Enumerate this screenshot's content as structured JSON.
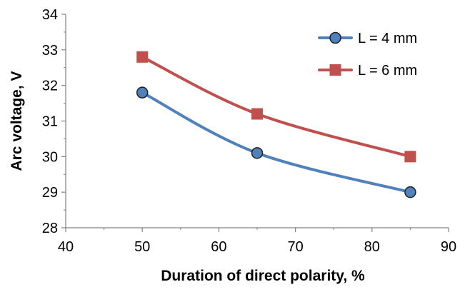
{
  "chart_data": {
    "type": "line",
    "title": "",
    "xlabel": "Duration of direct polarity, %",
    "ylabel": "Arc voltage, V",
    "xlim": [
      40,
      90
    ],
    "ylim": [
      28,
      34
    ],
    "xticks": [
      40,
      50,
      60,
      70,
      80,
      90
    ],
    "yticks": [
      28,
      29,
      30,
      31,
      32,
      33,
      34
    ],
    "x_tick_labels": [
      "40",
      "50",
      "60",
      "70",
      "80",
      "90"
    ],
    "y_tick_labels": [
      "28",
      "29",
      "30",
      "31",
      "32",
      "33",
      "34"
    ],
    "grid": false,
    "smooth": true,
    "legend_position": "top-right",
    "series": [
      {
        "name": "L = 4 mm",
        "marker": "circle",
        "line_color": "#4F81BD",
        "marker_fill": "#4F81BD",
        "marker_edge": "#1F1F1F",
        "x": [
          50,
          65,
          85
        ],
        "y": [
          31.8,
          30.1,
          29.0
        ]
      },
      {
        "name": "L = 6 mm",
        "marker": "square",
        "line_color": "#C0504D",
        "marker_fill": "#C0504D",
        "marker_edge": "#C0504D",
        "x": [
          50,
          65,
          85
        ],
        "y": [
          32.8,
          31.2,
          30.0
        ]
      }
    ]
  }
}
